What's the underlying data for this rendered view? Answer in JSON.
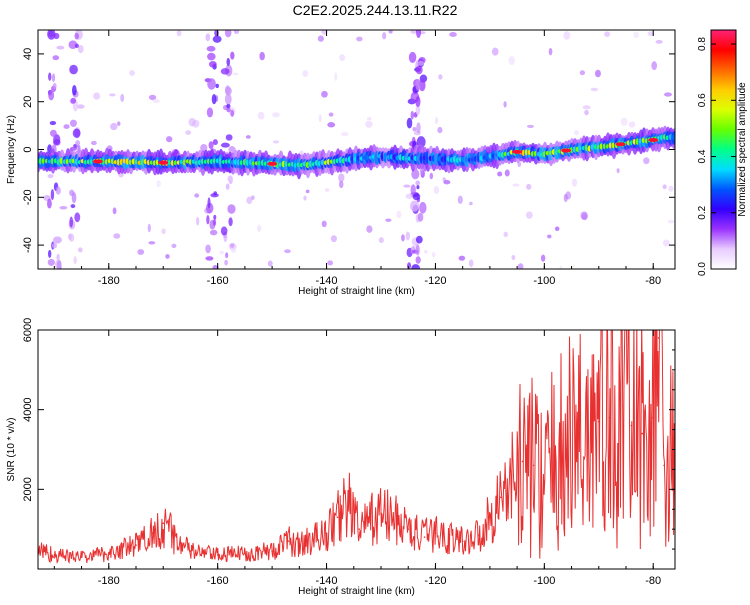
{
  "figure_title": "C2E2.2025.244.13.11.R22",
  "chart_data": [
    {
      "type": "heatmap",
      "title": "C2E2.2025.244.13.11.R22",
      "xlabel": "Height of straight line (km)",
      "ylabel": "Frequency (Hz)",
      "xlim": [
        -193,
        -76
      ],
      "ylim": [
        -50,
        50
      ],
      "xticks": [
        -180,
        -160,
        -140,
        -120,
        -100,
        -80
      ],
      "yticks": [
        -40,
        -20,
        0,
        20,
        40
      ],
      "colorbar": {
        "label": "Normalized spectral amplitude",
        "range": [
          0,
          0.85
        ],
        "ticks": [
          0.0,
          0.2,
          0.4,
          0.6,
          0.8
        ],
        "tick_labels": [
          "0.0",
          "0.2",
          "0.4",
          "0.6",
          "0.8"
        ],
        "colors": [
          "#ffffff",
          "#e8ccff",
          "#9a33ff",
          "#3300ff",
          "#0055ff",
          "#00ddff",
          "#00ff88",
          "#66ff00",
          "#ddff00",
          "#ffcc00",
          "#ff6600",
          "#ff0000",
          "#ff2277"
        ]
      },
      "ridge": {
        "x": [
          -193,
          -180,
          -170,
          -160,
          -150,
          -145,
          -140,
          -135,
          -130,
          -125,
          -120,
          -115,
          -110,
          -105,
          -100,
          -95,
          -90,
          -85,
          -80,
          -78
        ],
        "frequency": [
          -5,
          -5,
          -5.5,
          -5,
          -6,
          -6.5,
          -5.5,
          -4,
          -3,
          -3.5,
          -4,
          -4.5,
          -3,
          -1,
          -2,
          0,
          1,
          2.5,
          4,
          5
        ],
        "amplitude": [
          0.45,
          0.55,
          0.6,
          0.4,
          0.55,
          0.45,
          0.5,
          0.35,
          0.3,
          0.35,
          0.3,
          0.35,
          0.3,
          0.6,
          0.45,
          0.55,
          0.5,
          0.55,
          0.45,
          0.4
        ]
      },
      "vertical_streaks_x": [
        -190,
        -186,
        -161,
        -158,
        -124,
        -123
      ]
    },
    {
      "type": "line",
      "xlabel": "Height of straight line (km)",
      "ylabel": "SNR (10 * v/v)",
      "xlim": [
        -193,
        -76
      ],
      "ylim": [
        0,
        6000
      ],
      "xticks": [
        -180,
        -160,
        -140,
        -120,
        -100,
        -80
      ],
      "yticks": [
        2000,
        4000,
        6000
      ],
      "color": "#e83030",
      "series": [
        {
          "name": "SNR",
          "x": [
            -193,
            -190,
            -185,
            -180,
            -175,
            -172,
            -170,
            -168,
            -165,
            -160,
            -155,
            -150,
            -147,
            -145,
            -140,
            -138,
            -136,
            -134,
            -130,
            -127,
            -125,
            -122,
            -120,
            -115,
            -112,
            -110,
            -108,
            -106,
            -104,
            -102,
            -100,
            -98,
            -96,
            -94,
            -92,
            -90,
            -88,
            -86,
            -84,
            -82,
            -80,
            -79,
            -78,
            -76
          ],
          "y": [
            500,
            350,
            300,
            400,
            600,
            900,
            1150,
            800,
            450,
            350,
            400,
            450,
            700,
            600,
            900,
            1300,
            1700,
            1000,
            1400,
            1200,
            1000,
            800,
            900,
            700,
            850,
            1300,
            1800,
            2200,
            2700,
            2600,
            2200,
            2800,
            3000,
            3400,
            3500,
            3700,
            3800,
            4100,
            3600,
            3400,
            3800,
            5800,
            2600,
            2800
          ]
        }
      ]
    }
  ]
}
